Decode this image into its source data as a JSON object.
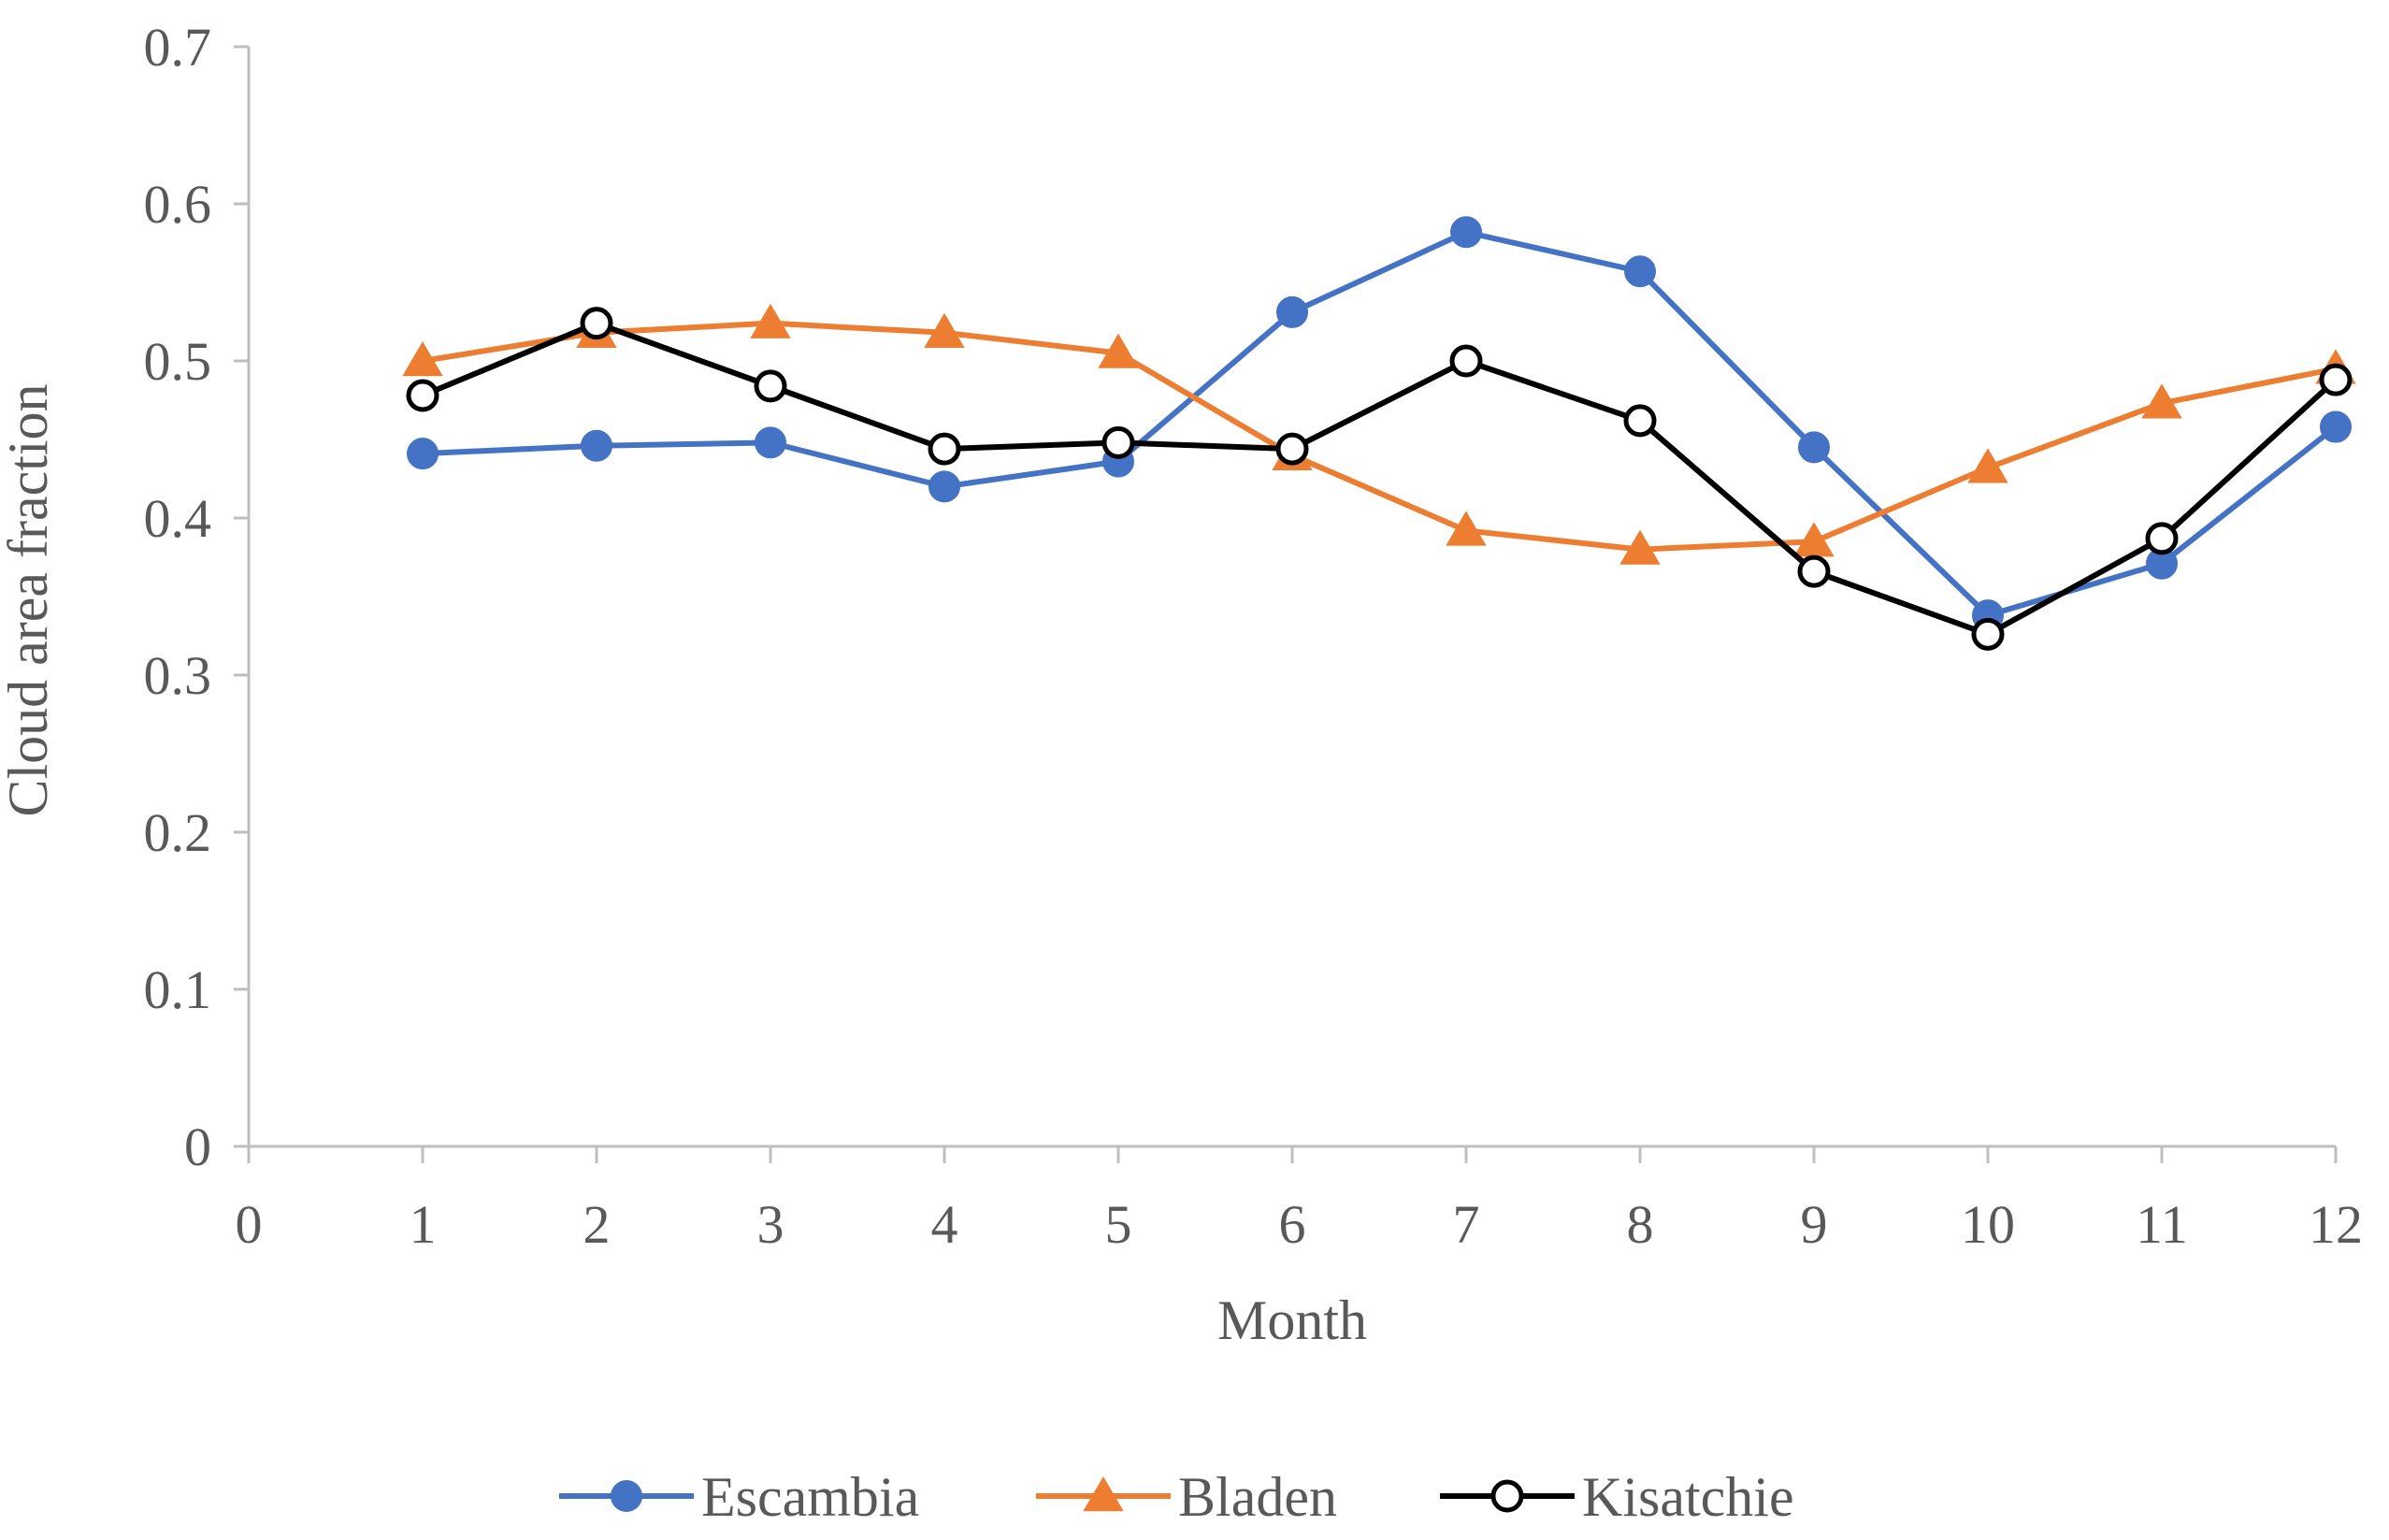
{
  "chart_data": {
    "type": "line",
    "title": "",
    "xlabel": "Month",
    "ylabel": "Cloud area fraction",
    "xlim": [
      0,
      12
    ],
    "ylim": [
      0,
      0.7
    ],
    "x_ticks": [
      "0",
      "1",
      "2",
      "3",
      "4",
      "5",
      "6",
      "7",
      "8",
      "9",
      "10",
      "11",
      "12"
    ],
    "y_ticks": [
      "0",
      "0.1",
      "0.2",
      "0.3",
      "0.4",
      "0.5",
      "0.6",
      "0.7"
    ],
    "grid": false,
    "legend_position": "bottom-center",
    "x": [
      1,
      2,
      3,
      4,
      5,
      6,
      7,
      8,
      9,
      10,
      11,
      12
    ],
    "series": [
      {
        "name": "Escambia",
        "color": "#4472c4",
        "marker": "circle-filled",
        "values": [
          0.441,
          0.446,
          0.448,
          0.42,
          0.436,
          0.531,
          0.582,
          0.557,
          0.445,
          0.338,
          0.371,
          0.458
        ]
      },
      {
        "name": "Bladen",
        "color": "#ed7d31",
        "marker": "triangle",
        "values": [
          0.5,
          0.518,
          0.524,
          0.518,
          0.505,
          0.44,
          0.392,
          0.38,
          0.385,
          0.432,
          0.473,
          0.495
        ]
      },
      {
        "name": "Kisatchie",
        "color": "#000000",
        "marker": "circle-open",
        "values": [
          0.478,
          0.524,
          0.484,
          0.444,
          0.448,
          0.444,
          0.5,
          0.462,
          0.366,
          0.326,
          0.387,
          0.488
        ]
      }
    ]
  }
}
